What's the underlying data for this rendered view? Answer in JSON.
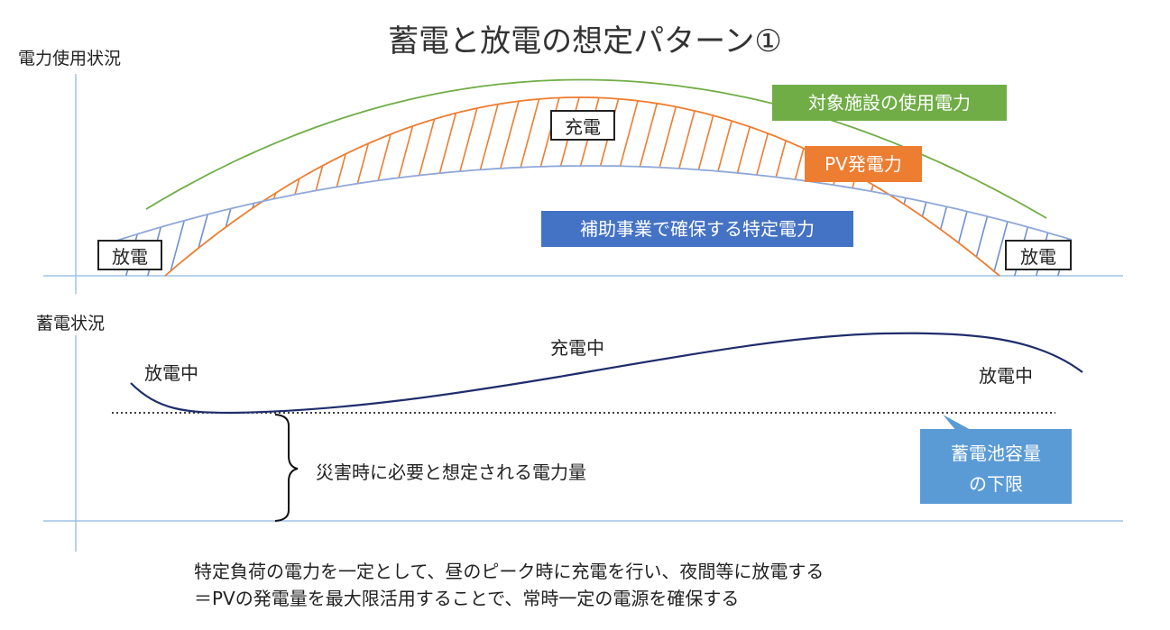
{
  "title": "蓄電と放電の想定パターン①",
  "upper_chart": {
    "axis_label": "電力使用状況",
    "labels": {
      "charge": "充電",
      "discharge_left": "放電",
      "discharge_right": "放電"
    },
    "legend": {
      "facility": "対象施設の使用電力",
      "pv": "PV発電力",
      "subsidy": "補助事業で確保する特定電力"
    }
  },
  "lower_chart": {
    "axis_label": "蓄電状況",
    "status": {
      "left": "放電中",
      "middle": "充電中",
      "right": "放電中"
    },
    "brace_label": "災害時に必要と想定される電力量",
    "callout": {
      "line1": "蓄電池容量",
      "line2": "の下限"
    }
  },
  "caption": {
    "line1": "特定負荷の電力を一定として、昼のピーク時に充電を行い、夜間等に放電する",
    "line2": "＝PVの発電量を最大限活用することで、常時一定の電源を確保する"
  },
  "colors": {
    "facility": "#70ad47",
    "pv": "#ed7d31",
    "subsidy": "#4472c4",
    "storage": "#1f2d6b",
    "axis": "#9dc3e6",
    "callout": "#5b9bd5"
  },
  "chart_data": {
    "type": "diagram",
    "series": [
      {
        "name": "対象施設の使用電力"
      },
      {
        "name": "PV発電力"
      },
      {
        "name": "補助事業で確保する特定電力"
      }
    ]
  }
}
